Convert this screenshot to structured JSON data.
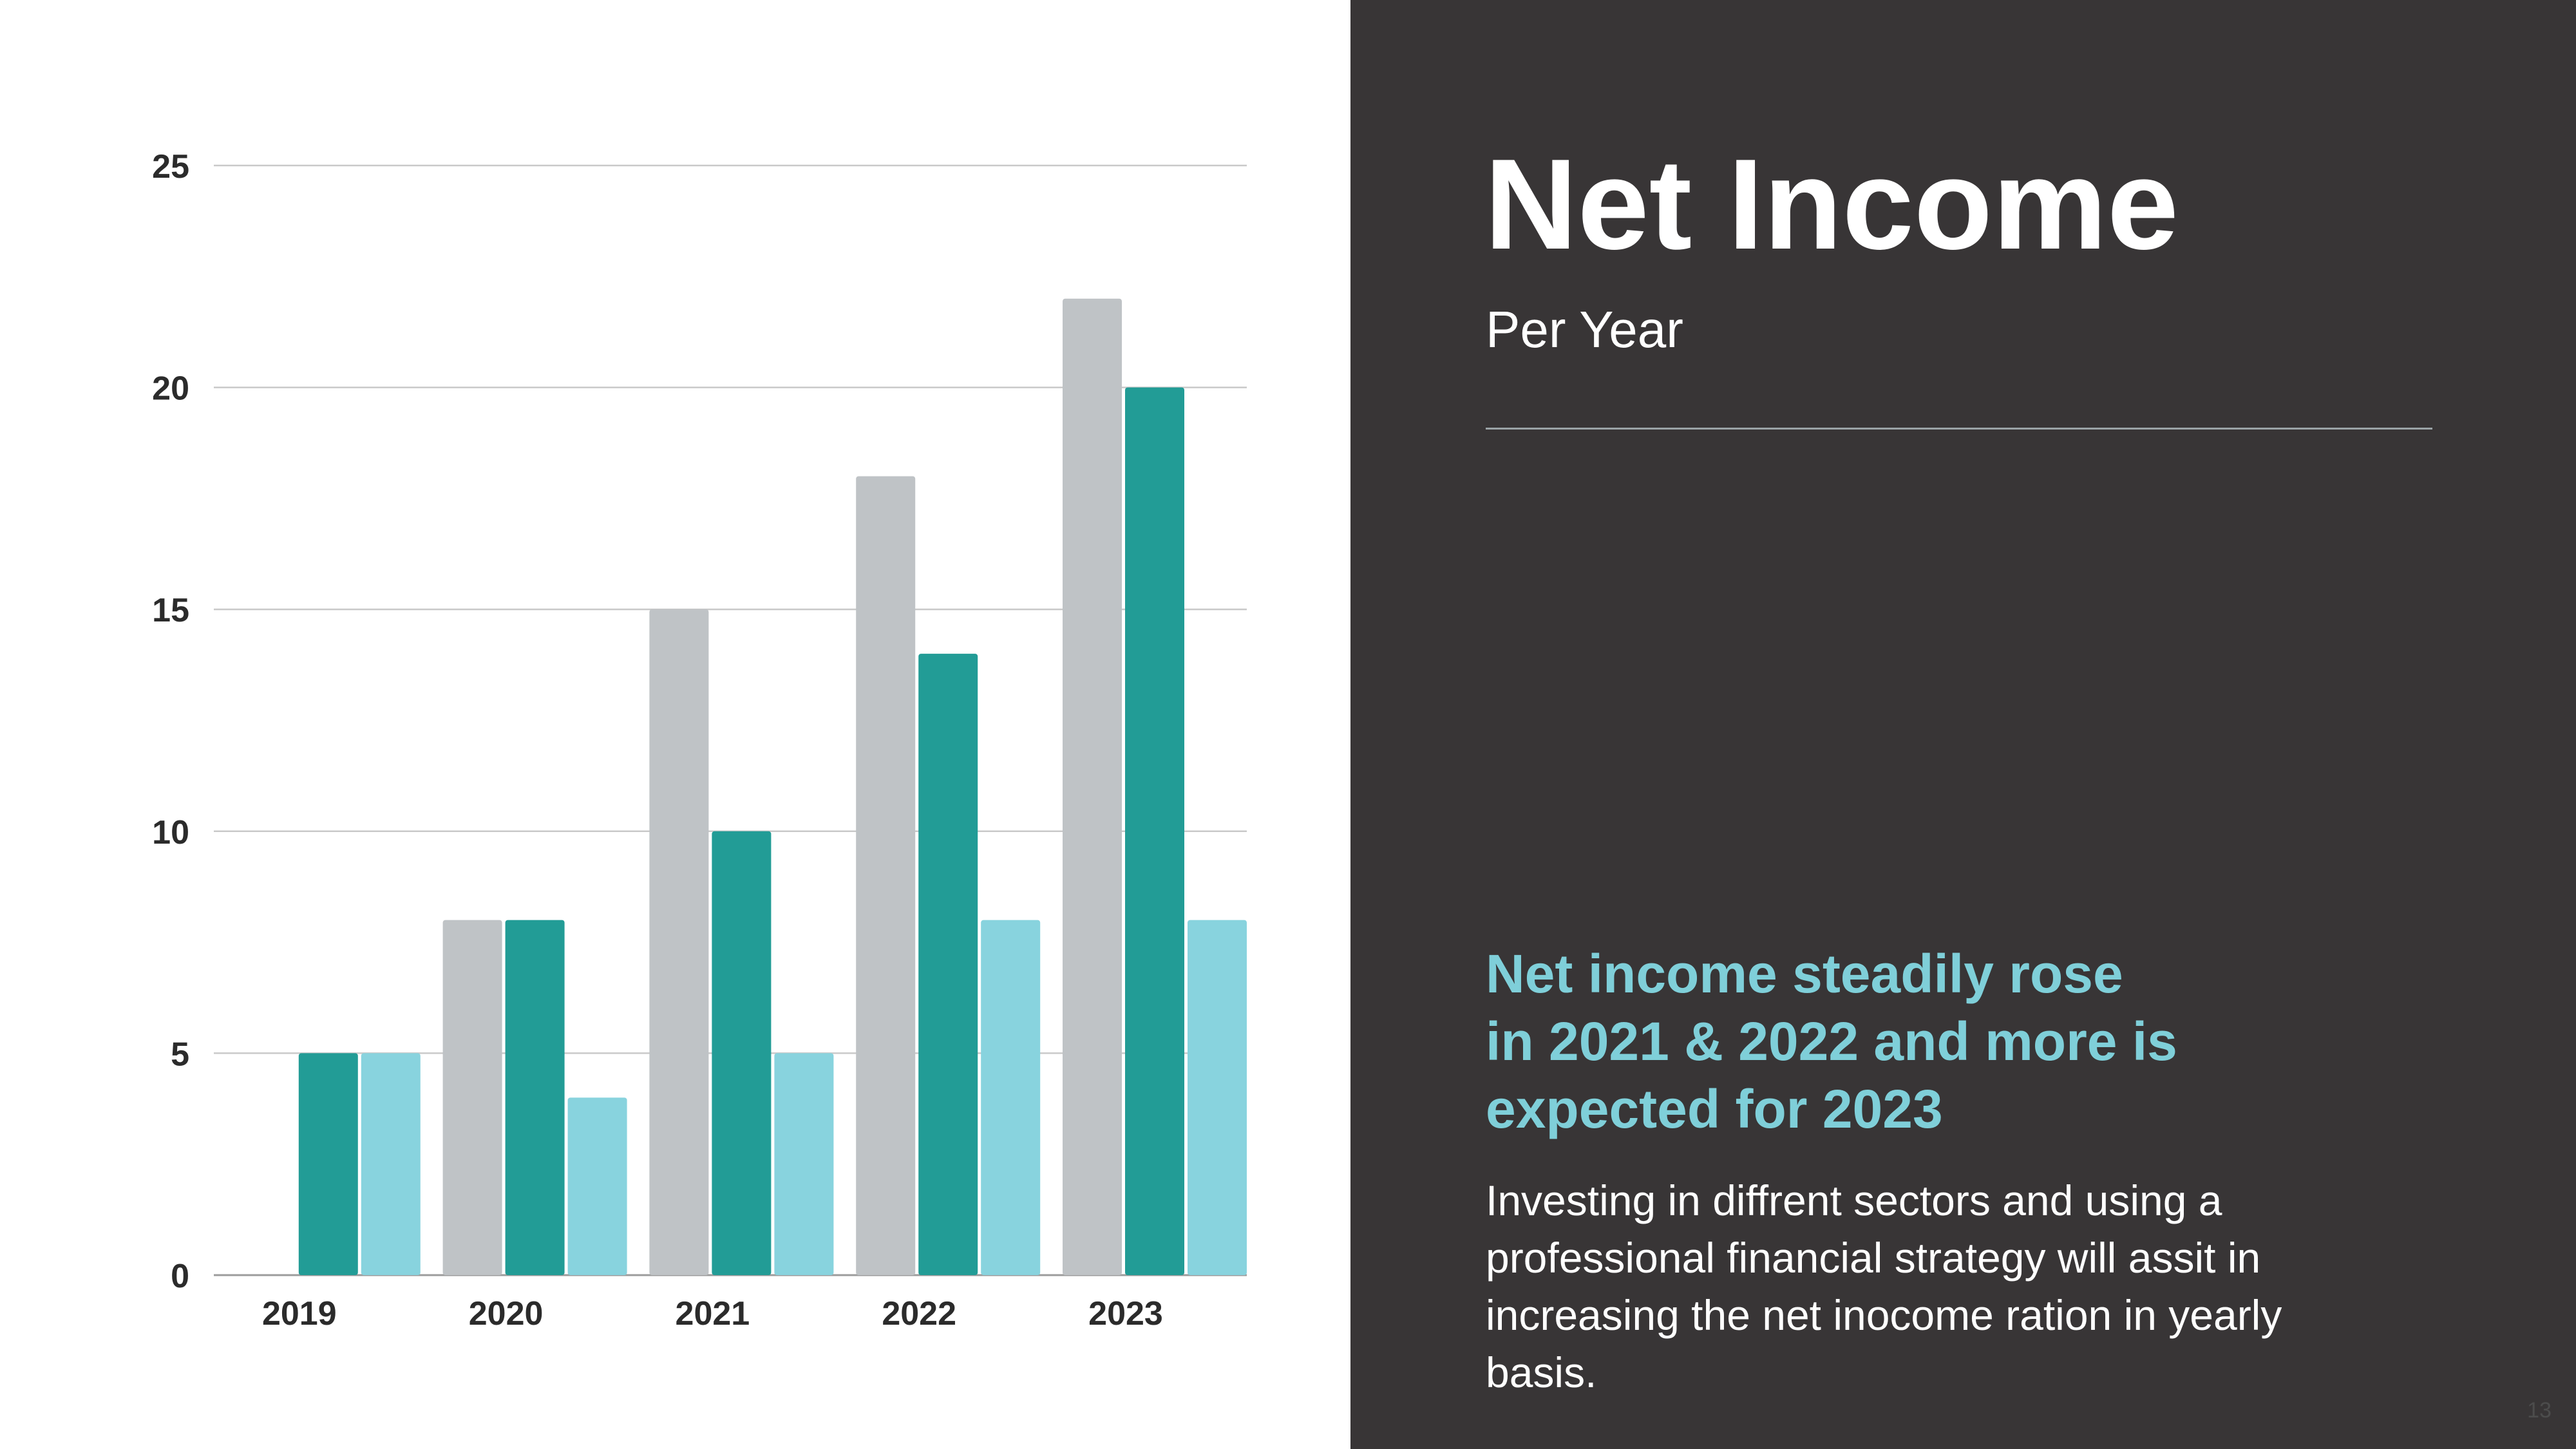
{
  "colors": {
    "panel_bg": "#383536",
    "accent": "#7fcfd9",
    "series_gray": "#bfc3c6",
    "series_teal": "#229c96",
    "series_light": "#88d3de",
    "grid": "#c9c9c9",
    "axis_text": "#2b2b2b"
  },
  "title": "Net Income",
  "subtitle": "Per Year",
  "headline_lines": [
    "Net income steadily rose",
    "in 2021 & 2022 and more is",
    "expected for 2023"
  ],
  "body_lines": [
    "Investing in diffrent sectors and using a",
    "professional financial strategy will assit in",
    "increasing the net inocome ration in yearly",
    "basis."
  ],
  "page_number": "13",
  "chart_data": {
    "type": "bar",
    "categories": [
      "2019",
      "2020",
      "2021",
      "2022",
      "2023"
    ],
    "series": [
      {
        "values": [
          0,
          8,
          15,
          18,
          22
        ]
      },
      {
        "values": [
          5,
          8,
          10,
          14,
          20
        ]
      },
      {
        "values": [
          5,
          4,
          5,
          8,
          8
        ]
      }
    ],
    "y_ticks": [
      "0",
      "5",
      "10",
      "15",
      "20",
      "25"
    ],
    "ylim": [
      0,
      25
    ],
    "grid": true,
    "legend": "none",
    "title": "",
    "xlabel": "",
    "ylabel": ""
  }
}
